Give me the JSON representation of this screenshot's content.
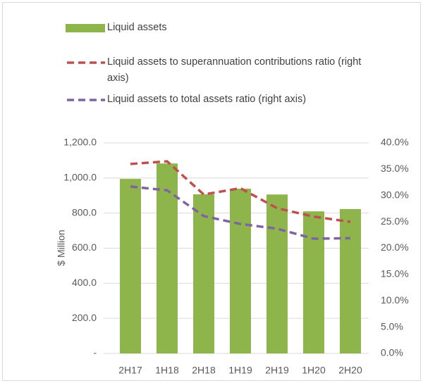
{
  "chart_data": {
    "type": "bar",
    "categories": [
      "2H17",
      "1H18",
      "2H18",
      "1H19",
      "2H19",
      "1H20",
      "2H20"
    ],
    "series": [
      {
        "name": "Liquid assets",
        "type": "bar",
        "color": "#8db54b",
        "values": [
          995,
          1083,
          907,
          939,
          906,
          810,
          823
        ]
      },
      {
        "name": " Liquid assets to superannuation contributions ratio (right axis)",
        "type": "line",
        "axis": "y2",
        "dashed": true,
        "color": "#c0504d",
        "values": [
          36.0,
          36.5,
          30.2,
          31.4,
          27.6,
          26.0,
          25.0
        ]
      },
      {
        "name": "Liquid assets to total assets ratio (right axis)",
        "type": "line",
        "axis": "y2",
        "dashed": true,
        "color": "#8064a2",
        "values": [
          31.7,
          31.0,
          26.1,
          24.6,
          23.7,
          21.8,
          21.9
        ]
      }
    ],
    "ylabel": "$ Million",
    "ylim": [
      0,
      1200
    ],
    "yticks": [
      {
        "value": 0,
        "label": "-"
      },
      {
        "value": 200,
        "label": "200.0"
      },
      {
        "value": 400,
        "label": "400.0"
      },
      {
        "value": 600,
        "label": "600.0"
      },
      {
        "value": 800,
        "label": "800.0"
      },
      {
        "value": 1000,
        "label": "1,000.0"
      },
      {
        "value": 1200,
        "label": "1,200.0"
      }
    ],
    "y2lim": [
      0,
      40
    ],
    "y2ticks": [
      {
        "value": 0,
        "label": "0.0%"
      },
      {
        "value": 5,
        "label": "5.0%"
      },
      {
        "value": 10,
        "label": "10.0%"
      },
      {
        "value": 15,
        "label": "15.0%"
      },
      {
        "value": 20,
        "label": "20.0%"
      },
      {
        "value": 25,
        "label": "25.0%"
      },
      {
        "value": 30,
        "label": "30.0%"
      },
      {
        "value": 35,
        "label": "35.0%"
      },
      {
        "value": 40,
        "label": "40.0%"
      }
    ],
    "grid": true
  }
}
